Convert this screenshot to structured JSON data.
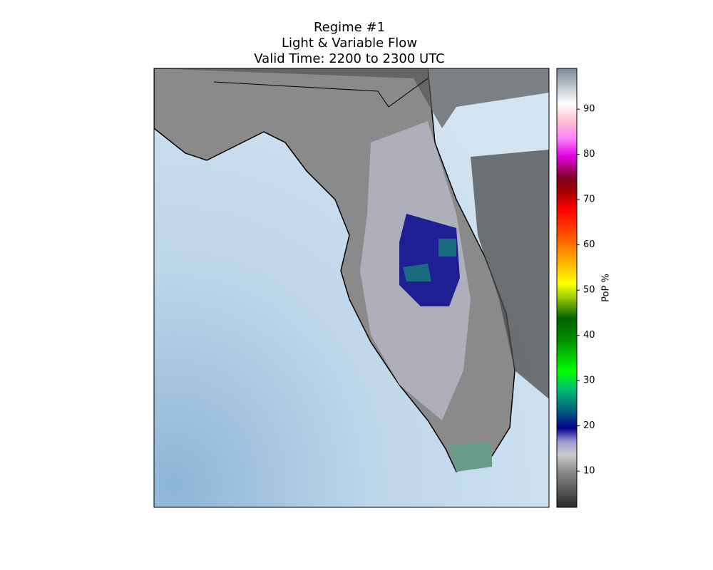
{
  "chart_data": {
    "type": "map",
    "title": [
      "Regime #1",
      "Light & Variable Flow",
      "Valid Time: 2200 to 2300 UTC"
    ],
    "colorbar": {
      "label": "PoP %",
      "lim": [
        2,
        99
      ],
      "ticks": [
        10,
        20,
        30,
        40,
        50,
        60,
        70,
        80,
        90
      ]
    }
  }
}
